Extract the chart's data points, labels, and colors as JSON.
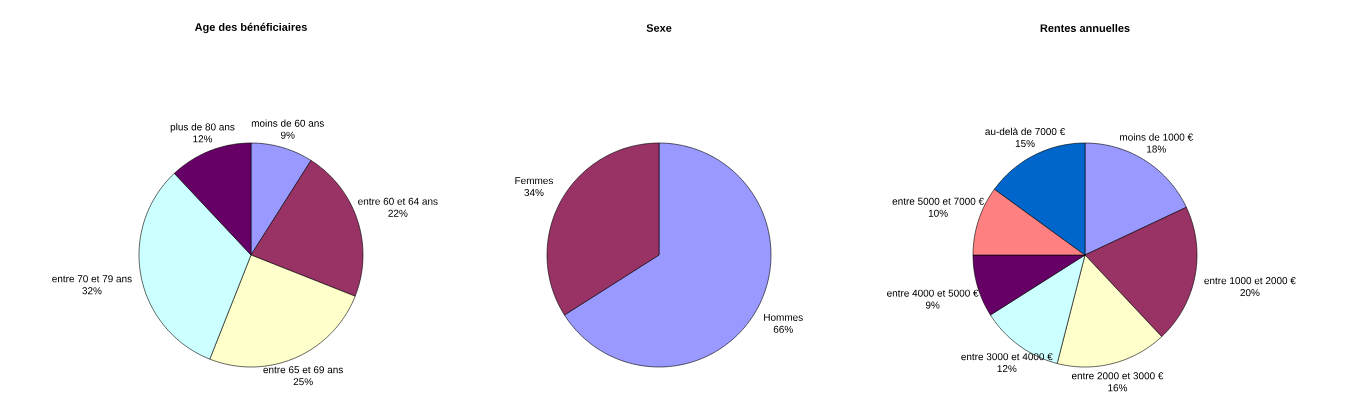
{
  "chart_data": [
    {
      "type": "pie",
      "title": "Age des bénéficiaires",
      "categories": [
        "moins de 60 ans",
        "entre 60 et 64 ans",
        "entre 65 et 69 ans",
        "entre 70 et 79 ans",
        "plus de 80 ans"
      ],
      "values": [
        9,
        22,
        25,
        32,
        12
      ],
      "value_labels": [
        "9%",
        "22%",
        "25%",
        "32%",
        "12%"
      ],
      "colors": [
        "#9999ff",
        "#993366",
        "#ffffcc",
        "#ccffff",
        "#660066"
      ]
    },
    {
      "type": "pie",
      "title": "Sexe",
      "categories": [
        "Hommes",
        "Femmes"
      ],
      "values": [
        66,
        34
      ],
      "value_labels": [
        "66%",
        "34%"
      ],
      "colors": [
        "#9999ff",
        "#993366"
      ]
    },
    {
      "type": "pie",
      "title": "Rentes annuelles",
      "categories": [
        "moins de 1000 €",
        "entre 1000 et 2000 €",
        "entre 2000 et 3000 €",
        "entre 3000 et 4000 €",
        "entre 4000 et 5000 €",
        "entre 5000 et 7000 €",
        "au-delà de 7000 €"
      ],
      "values": [
        18,
        20,
        16,
        12,
        9,
        10,
        15
      ],
      "value_labels": [
        "18%",
        "20%",
        "16%",
        "12%",
        "9%",
        "10%",
        "15%"
      ],
      "colors": [
        "#9999ff",
        "#993366",
        "#ffffcc",
        "#ccffff",
        "#660066",
        "#ff8080",
        "#0066cc"
      ]
    }
  ]
}
